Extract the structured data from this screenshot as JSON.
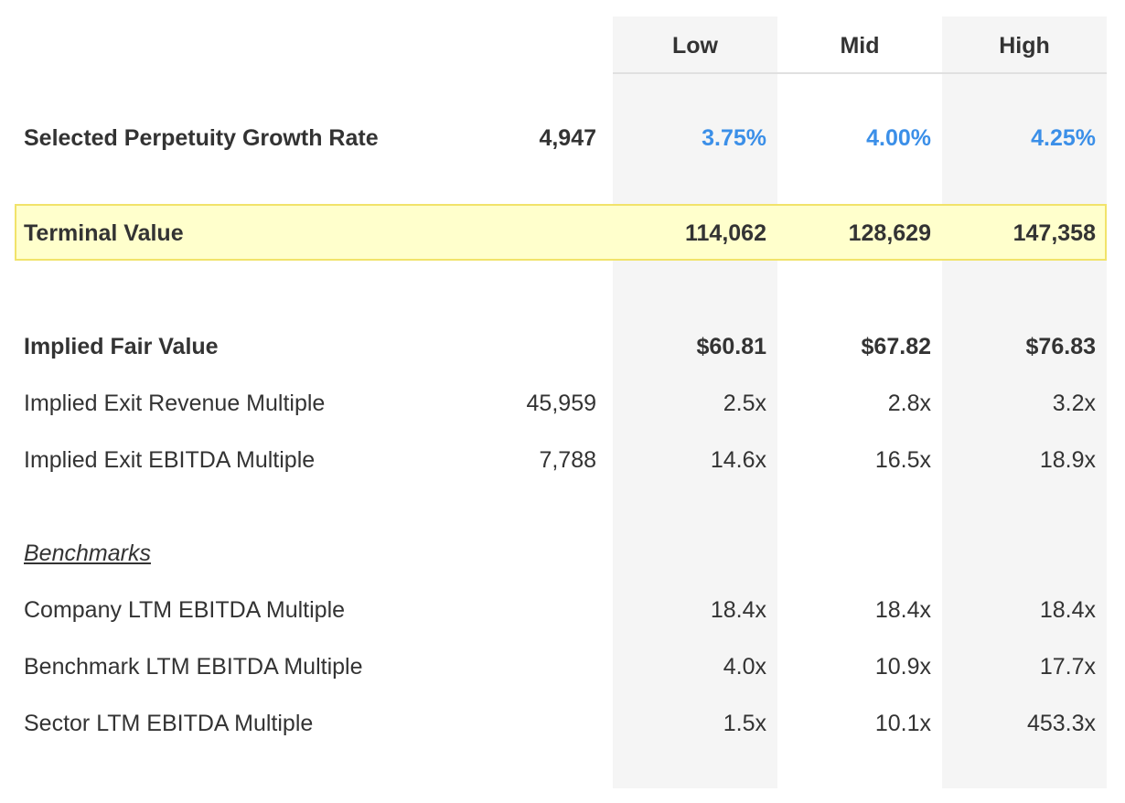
{
  "columns": {
    "low": "Low",
    "mid": "Mid",
    "high": "High"
  },
  "rows": {
    "growth_rate": {
      "label": "Selected Perpetuity Growth Rate",
      "base": "4,947",
      "low": "3.75%",
      "mid": "4.00%",
      "high": "4.25%"
    },
    "terminal_value": {
      "label": "Terminal Value",
      "low": "114,062",
      "mid": "128,629",
      "high": "147,358"
    },
    "fair_value": {
      "label": "Implied Fair Value",
      "low": "$60.81",
      "mid": "$67.82",
      "high": "$76.83"
    },
    "exit_revenue": {
      "label": "Implied Exit Revenue Multiple",
      "base": "45,959",
      "low": "2.5x",
      "mid": "2.8x",
      "high": "3.2x"
    },
    "exit_ebitda": {
      "label": "Implied Exit EBITDA Multiple",
      "base": "7,788",
      "low": "14.6x",
      "mid": "16.5x",
      "high": "18.9x"
    }
  },
  "benchmarks": {
    "heading": "Benchmarks",
    "company": {
      "label": "Company LTM EBITDA Multiple",
      "low": "18.4x",
      "mid": "18.4x",
      "high": "18.4x"
    },
    "benchmark": {
      "label": "Benchmark LTM EBITDA Multiple",
      "low": "4.0x",
      "mid": "10.9x",
      "high": "17.7x"
    },
    "sector": {
      "label": "Sector LTM EBITDA Multiple",
      "low": "1.5x",
      "mid": "10.1x",
      "high": "453.3x"
    }
  },
  "colors": {
    "accent_blue": "#3b8fe8",
    "highlight_fill": "#ffffcc",
    "highlight_border": "#f1e36a",
    "column_shade": "#f5f5f5"
  }
}
